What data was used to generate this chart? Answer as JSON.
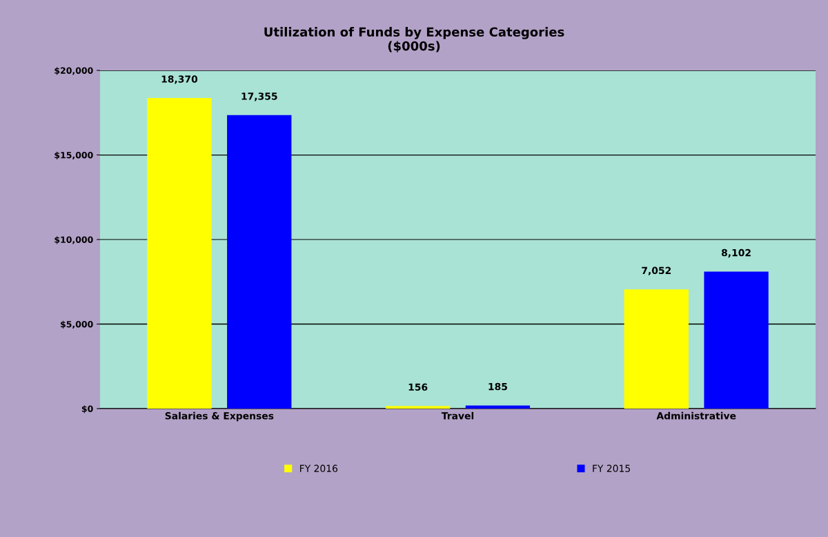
{
  "chart_data": {
    "type": "bar",
    "title": "Utilization of Funds by Expense Categories\n($000s)",
    "categories": [
      "Salaries & Expenses",
      "Travel",
      "Administrative"
    ],
    "series": [
      {
        "name": "FY 2016",
        "color": "#ffff00",
        "values": [
          18370,
          156,
          7052
        ],
        "value_labels": [
          "18,370",
          "156",
          "7,052"
        ]
      },
      {
        "name": "FY 2015",
        "color": "#0000ff",
        "values": [
          17355,
          185,
          8102
        ],
        "value_labels": [
          "17,355",
          "185",
          "8,102"
        ]
      }
    ],
    "ylim": [
      0,
      20000
    ],
    "yticks": [
      {
        "value": 0,
        "label": "$0"
      },
      {
        "value": 5000,
        "label": "$5,000"
      },
      {
        "value": 10000,
        "label": "$10,000"
      },
      {
        "value": 15000,
        "label": "$15,000"
      },
      {
        "value": 20000,
        "label": "$20,000"
      }
    ],
    "grid": "y",
    "legend": "bottom"
  }
}
